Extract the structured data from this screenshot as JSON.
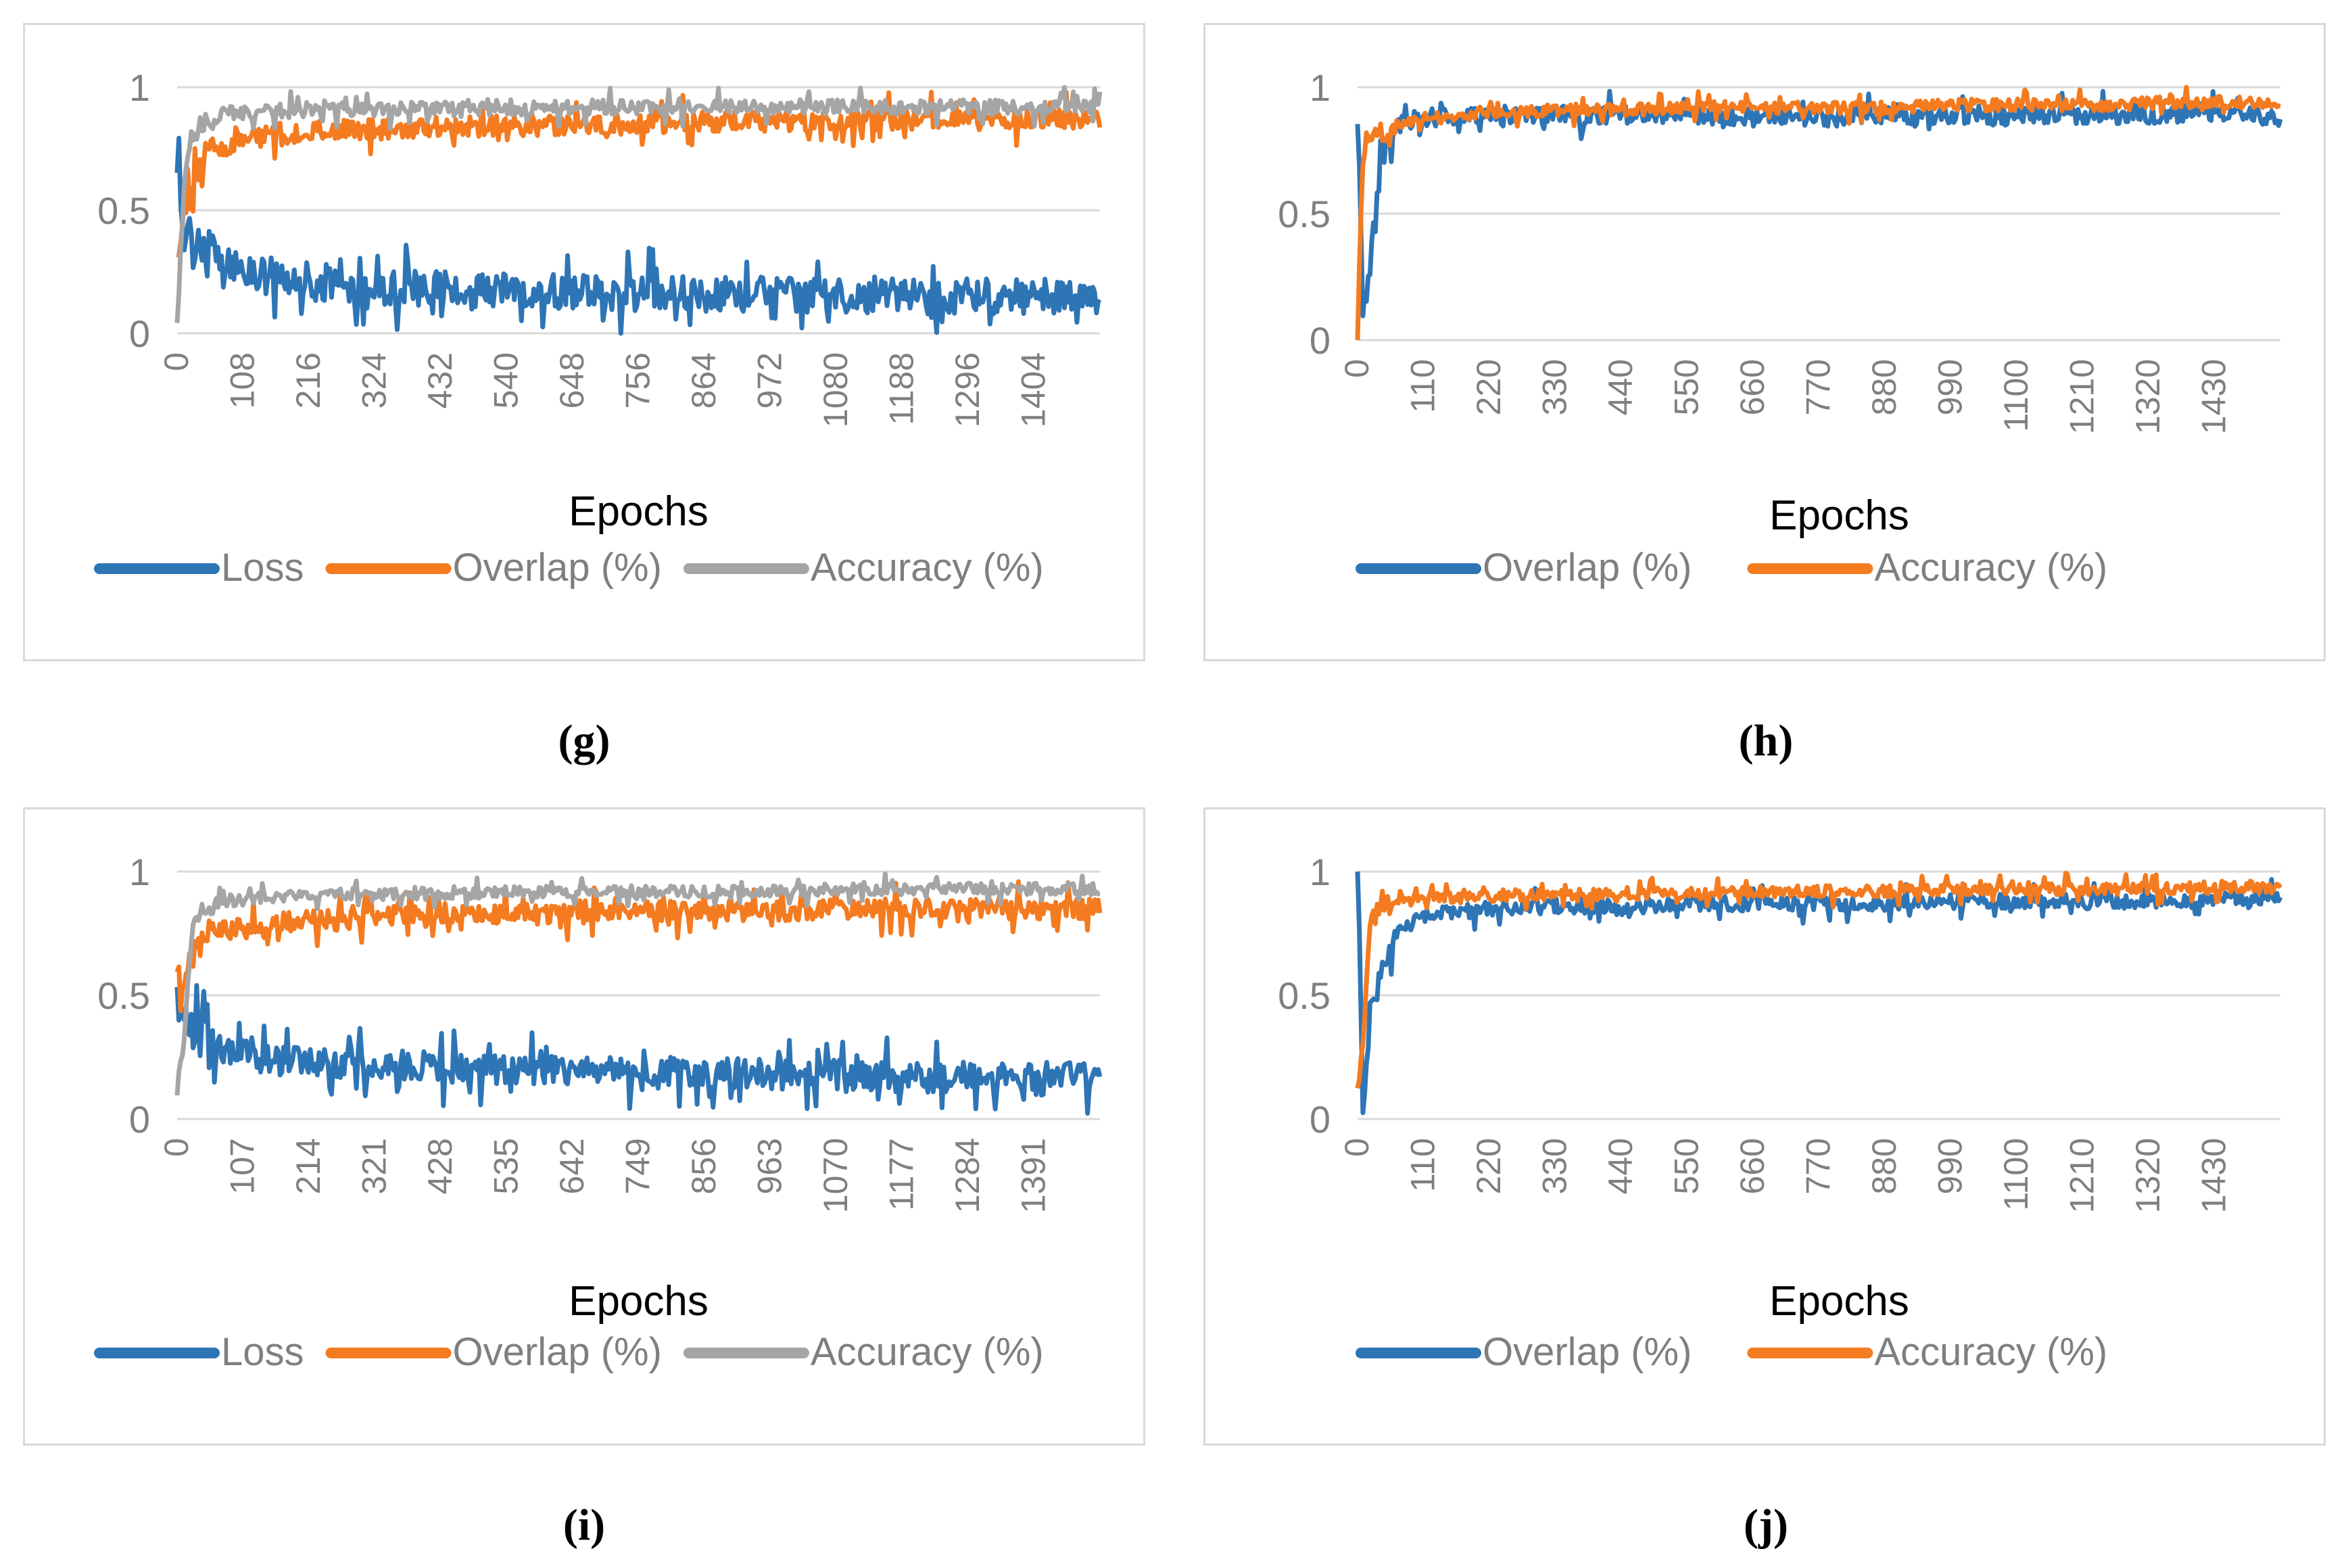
{
  "colors": {
    "blue": "#2e75b6",
    "orange": "#f47b20",
    "gray": "#a5a5a5",
    "grid": "#d9d9d9",
    "tick": "#7f7f7f"
  },
  "captions": [
    "(g)",
    "(h)",
    "(i)",
    "(j)"
  ],
  "chart_data": [
    {
      "type": "line",
      "panel": "g",
      "xlabel": "Epochs",
      "ylabel": "",
      "ylim": [
        0,
        1
      ],
      "yticks": [
        "0",
        "0.5",
        "1"
      ],
      "xlim": [
        0,
        1500
      ],
      "xticks": [
        "0",
        "108",
        "216",
        "324",
        "432",
        "540",
        "648",
        "756",
        "864",
        "972",
        "1080",
        "1188",
        "1296",
        "1404"
      ],
      "legend_position": "bottom",
      "grid": true,
      "series": [
        {
          "name": "Loss",
          "color": "#2e75b6",
          "points": [
            [
              0,
              0.62
            ],
            [
              10,
              0.45
            ],
            [
              25,
              0.38
            ],
            [
              50,
              0.33
            ],
            [
              75,
              0.3
            ],
            [
              108,
              0.26
            ],
            [
              150,
              0.22
            ],
            [
              216,
              0.2
            ],
            [
              324,
              0.19
            ],
            [
              432,
              0.18
            ],
            [
              540,
              0.17
            ],
            [
              648,
              0.17
            ],
            [
              756,
              0.16
            ],
            [
              864,
              0.16
            ],
            [
              972,
              0.16
            ],
            [
              1080,
              0.15
            ],
            [
              1188,
              0.15
            ],
            [
              1296,
              0.15
            ],
            [
              1404,
              0.15
            ],
            [
              1500,
              0.15
            ]
          ]
        },
        {
          "name": "Overlap (%)",
          "color": "#f47b20",
          "points": [
            [
              0,
              0.3
            ],
            [
              10,
              0.5
            ],
            [
              25,
              0.65
            ],
            [
              50,
              0.72
            ],
            [
              75,
              0.76
            ],
            [
              108,
              0.79
            ],
            [
              150,
              0.8
            ],
            [
              216,
              0.82
            ],
            [
              324,
              0.83
            ],
            [
              432,
              0.84
            ],
            [
              540,
              0.84
            ],
            [
              648,
              0.85
            ],
            [
              756,
              0.85
            ],
            [
              864,
              0.86
            ],
            [
              972,
              0.86
            ],
            [
              1080,
              0.86
            ],
            [
              1188,
              0.87
            ],
            [
              1296,
              0.87
            ],
            [
              1404,
              0.87
            ],
            [
              1500,
              0.87
            ]
          ]
        },
        {
          "name": "Accuracy (%)",
          "color": "#a5a5a5",
          "points": [
            [
              0,
              0.0
            ],
            [
              10,
              0.55
            ],
            [
              25,
              0.82
            ],
            [
              50,
              0.87
            ],
            [
              75,
              0.89
            ],
            [
              108,
              0.9
            ],
            [
              150,
              0.9
            ],
            [
              216,
              0.91
            ],
            [
              324,
              0.91
            ],
            [
              432,
              0.91
            ],
            [
              540,
              0.91
            ],
            [
              648,
              0.92
            ],
            [
              756,
              0.92
            ],
            [
              864,
              0.92
            ],
            [
              972,
              0.92
            ],
            [
              1080,
              0.92
            ],
            [
              1188,
              0.92
            ],
            [
              1296,
              0.92
            ],
            [
              1404,
              0.92
            ],
            [
              1500,
              0.92
            ]
          ]
        }
      ]
    },
    {
      "type": "line",
      "panel": "h",
      "xlabel": "Epochs",
      "ylabel": "",
      "ylim": [
        0,
        1
      ],
      "yticks": [
        "0",
        "0.5",
        "1"
      ],
      "xlim": [
        0,
        1500
      ],
      "xticks": [
        "0",
        "110",
        "220",
        "330",
        "440",
        "550",
        "660",
        "770",
        "880",
        "990",
        "1100",
        "1210",
        "1320",
        "1430"
      ],
      "legend_position": "bottom",
      "grid": true,
      "series": [
        {
          "name": "Overlap (%)",
          "color": "#2e75b6",
          "points": [
            [
              0,
              1.0
            ],
            [
              8,
              0.1
            ],
            [
              20,
              0.3
            ],
            [
              40,
              0.75
            ],
            [
              60,
              0.85
            ],
            [
              110,
              0.88
            ],
            [
              220,
              0.89
            ],
            [
              330,
              0.89
            ],
            [
              440,
              0.89
            ],
            [
              550,
              0.89
            ],
            [
              660,
              0.88
            ],
            [
              770,
              0.88
            ],
            [
              880,
              0.89
            ],
            [
              990,
              0.89
            ],
            [
              1100,
              0.89
            ],
            [
              1210,
              0.89
            ],
            [
              1320,
              0.89
            ],
            [
              1430,
              0.89
            ],
            [
              1500,
              0.88
            ]
          ]
        },
        {
          "name": "Accuracy (%)",
          "color": "#f47b20",
          "points": [
            [
              0,
              0.0
            ],
            [
              8,
              0.7
            ],
            [
              20,
              0.8
            ],
            [
              40,
              0.82
            ],
            [
              60,
              0.86
            ],
            [
              110,
              0.88
            ],
            [
              220,
              0.9
            ],
            [
              330,
              0.91
            ],
            [
              440,
              0.91
            ],
            [
              550,
              0.92
            ],
            [
              660,
              0.92
            ],
            [
              770,
              0.92
            ],
            [
              880,
              0.92
            ],
            [
              990,
              0.93
            ],
            [
              1100,
              0.93
            ],
            [
              1210,
              0.93
            ],
            [
              1320,
              0.94
            ],
            [
              1430,
              0.94
            ],
            [
              1500,
              0.94
            ]
          ]
        }
      ]
    },
    {
      "type": "line",
      "panel": "i",
      "xlabel": "Epochs",
      "ylabel": "",
      "ylim": [
        0,
        1
      ],
      "yticks": [
        "0",
        "0.5",
        "1"
      ],
      "xlim": [
        0,
        1500
      ],
      "xticks": [
        "0",
        "107",
        "214",
        "321",
        "428",
        "535",
        "642",
        "749",
        "856",
        "963",
        "1070",
        "1177",
        "1284",
        "1391"
      ],
      "legend_position": "bottom",
      "grid": true,
      "series": [
        {
          "name": "Loss",
          "color": "#2e75b6",
          "points": [
            [
              0,
              0.55
            ],
            [
              10,
              0.42
            ],
            [
              25,
              0.35
            ],
            [
              50,
              0.3
            ],
            [
              75,
              0.28
            ],
            [
              107,
              0.26
            ],
            [
              150,
              0.24
            ],
            [
              214,
              0.23
            ],
            [
              321,
              0.22
            ],
            [
              428,
              0.21
            ],
            [
              535,
              0.2
            ],
            [
              642,
              0.2
            ],
            [
              749,
              0.19
            ],
            [
              856,
              0.19
            ],
            [
              963,
              0.18
            ],
            [
              1070,
              0.18
            ],
            [
              1177,
              0.17
            ],
            [
              1284,
              0.17
            ],
            [
              1391,
              0.17
            ],
            [
              1500,
              0.17
            ]
          ]
        },
        {
          "name": "Overlap (%)",
          "color": "#f47b20",
          "points": [
            [
              0,
              0.62
            ],
            [
              10,
              0.55
            ],
            [
              25,
              0.65
            ],
            [
              50,
              0.72
            ],
            [
              75,
              0.76
            ],
            [
              107,
              0.78
            ],
            [
              150,
              0.79
            ],
            [
              214,
              0.8
            ],
            [
              321,
              0.81
            ],
            [
              428,
              0.82
            ],
            [
              535,
              0.83
            ],
            [
              642,
              0.83
            ],
            [
              749,
              0.84
            ],
            [
              856,
              0.84
            ],
            [
              963,
              0.84
            ],
            [
              1070,
              0.85
            ],
            [
              1177,
              0.85
            ],
            [
              1284,
              0.85
            ],
            [
              1391,
              0.85
            ],
            [
              1500,
              0.85
            ]
          ]
        },
        {
          "name": "Accuracy (%)",
          "color": "#a5a5a5",
          "points": [
            [
              0,
              0.1
            ],
            [
              10,
              0.3
            ],
            [
              25,
              0.8
            ],
            [
              50,
              0.86
            ],
            [
              75,
              0.88
            ],
            [
              107,
              0.89
            ],
            [
              150,
              0.9
            ],
            [
              214,
              0.91
            ],
            [
              321,
              0.91
            ],
            [
              428,
              0.91
            ],
            [
              535,
              0.92
            ],
            [
              642,
              0.92
            ],
            [
              749,
              0.92
            ],
            [
              856,
              0.92
            ],
            [
              963,
              0.92
            ],
            [
              1070,
              0.92
            ],
            [
              1177,
              0.93
            ],
            [
              1284,
              0.93
            ],
            [
              1391,
              0.93
            ],
            [
              1500,
              0.93
            ]
          ]
        }
      ]
    },
    {
      "type": "line",
      "panel": "j",
      "xlabel": "Epochs",
      "ylabel": "",
      "ylim": [
        0,
        1
      ],
      "yticks": [
        "0",
        "0.5",
        "1"
      ],
      "xlim": [
        0,
        1500
      ],
      "xticks": [
        "0",
        "110",
        "220",
        "330",
        "440",
        "550",
        "660",
        "770",
        "880",
        "990",
        "1100",
        "1210",
        "1320",
        "1430"
      ],
      "legend_position": "bottom",
      "grid": true,
      "series": [
        {
          "name": "Overlap (%)",
          "color": "#2e75b6",
          "points": [
            [
              0,
              1.0
            ],
            [
              8,
              0.02
            ],
            [
              20,
              0.4
            ],
            [
              40,
              0.6
            ],
            [
              60,
              0.75
            ],
            [
              110,
              0.82
            ],
            [
              220,
              0.85
            ],
            [
              330,
              0.86
            ],
            [
              440,
              0.86
            ],
            [
              550,
              0.87
            ],
            [
              660,
              0.87
            ],
            [
              770,
              0.87
            ],
            [
              880,
              0.87
            ],
            [
              990,
              0.88
            ],
            [
              1100,
              0.88
            ],
            [
              1210,
              0.88
            ],
            [
              1320,
              0.88
            ],
            [
              1430,
              0.89
            ],
            [
              1500,
              0.89
            ]
          ]
        },
        {
          "name": "Accuracy (%)",
          "color": "#f47b20",
          "points": [
            [
              0,
              0.1
            ],
            [
              8,
              0.3
            ],
            [
              20,
              0.8
            ],
            [
              40,
              0.86
            ],
            [
              60,
              0.88
            ],
            [
              110,
              0.89
            ],
            [
              220,
              0.9
            ],
            [
              330,
              0.91
            ],
            [
              440,
              0.91
            ],
            [
              550,
              0.91
            ],
            [
              660,
              0.92
            ],
            [
              770,
              0.92
            ],
            [
              880,
              0.92
            ],
            [
              990,
              0.93
            ],
            [
              1100,
              0.93
            ],
            [
              1210,
              0.93
            ],
            [
              1320,
              0.93
            ],
            [
              1430,
              0.94
            ],
            [
              1500,
              0.94
            ]
          ]
        }
      ]
    }
  ]
}
